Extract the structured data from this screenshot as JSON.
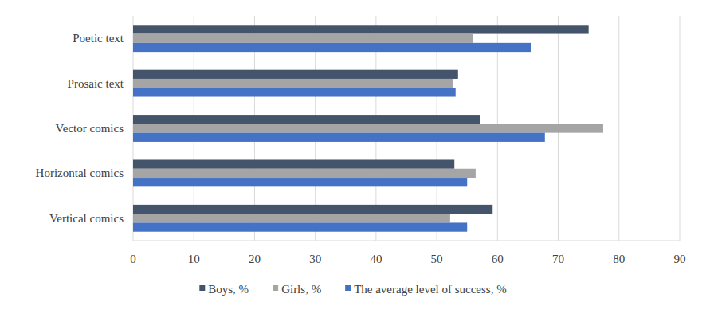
{
  "chart_data": {
    "type": "bar",
    "orientation": "horizontal",
    "categories": [
      "Poetic text",
      "Prosaic text",
      "Vector comics",
      "Horizontal comics",
      "Vertical comics"
    ],
    "series": [
      {
        "name": "Boys, %",
        "color": "#44546a",
        "values": [
          75,
          53.5,
          57.1,
          52.9,
          59.2
        ]
      },
      {
        "name": "Girls, %",
        "color": "#a5a5a5",
        "values": [
          56,
          52.6,
          77.4,
          56.4,
          52.2
        ]
      },
      {
        "name": "The average level of success, %",
        "color": "#4472c4",
        "values": [
          65.5,
          53.1,
          67.8,
          55,
          55
        ]
      }
    ],
    "xlim": [
      0,
      90
    ],
    "xticks": [
      0,
      10,
      20,
      30,
      40,
      50,
      60,
      70,
      80,
      90
    ],
    "grid": true,
    "legend": "bottom"
  }
}
